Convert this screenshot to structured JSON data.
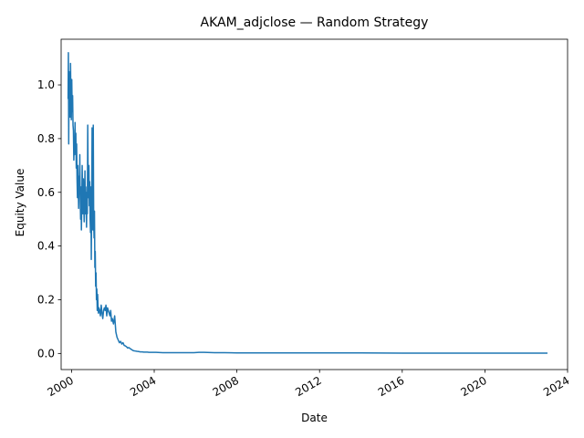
{
  "chart_data": {
    "type": "line",
    "title": "AKAM_adjclose — Random Strategy",
    "xlabel": "Date",
    "ylabel": "Equity Value",
    "xlim": [
      "1999-07-01",
      "2024-01-01"
    ],
    "ylim": [
      -0.06,
      1.17
    ],
    "x_ticks": [
      "2000",
      "2004",
      "2008",
      "2012",
      "2016",
      "2020",
      "2024"
    ],
    "y_ticks": [
      "0.0",
      "0.2",
      "0.4",
      "0.6",
      "0.8",
      "1.0"
    ],
    "grid": false,
    "legend": "none",
    "color": "#1f77b4",
    "series": [
      {
        "x": [
          "1999-11-01",
          "1999-11-06",
          "1999-11-12",
          "1999-11-18",
          "1999-11-24",
          "1999-12-01",
          "1999-12-07",
          "1999-12-14",
          "1999-12-21",
          "1999-12-28",
          "2000-01-05",
          "2000-01-12",
          "2000-01-20",
          "2000-01-27",
          "2000-02-03",
          "2000-02-10",
          "2000-02-18",
          "2000-02-25",
          "2000-03-03",
          "2000-03-10",
          "2000-03-17",
          "2000-03-24",
          "2000-03-31",
          "2000-04-07",
          "2000-04-14",
          "2000-04-21",
          "2000-04-28",
          "2000-05-05",
          "2000-05-12",
          "2000-05-19",
          "2000-05-26",
          "2000-06-02",
          "2000-06-09",
          "2000-06-16",
          "2000-06-23",
          "2000-06-30",
          "2000-07-07",
          "2000-07-14",
          "2000-07-21",
          "2000-07-28",
          "2000-08-04",
          "2000-08-11",
          "2000-08-18",
          "2000-08-25",
          "2000-09-01",
          "2000-09-08",
          "2000-09-15",
          "2000-09-22",
          "2000-09-29",
          "2000-10-06",
          "2000-10-13",
          "2000-10-20",
          "2000-10-27",
          "2000-11-03",
          "2000-11-10",
          "2000-11-17",
          "2000-11-24",
          "2000-12-01",
          "2000-12-08",
          "2000-12-15",
          "2000-12-22",
          "2000-12-29",
          "2001-01-05",
          "2001-01-12",
          "2001-01-19",
          "2001-01-26",
          "2001-02-02",
          "2001-02-09",
          "2001-02-16",
          "2001-02-23",
          "2001-03-02",
          "2001-03-09",
          "2001-03-16",
          "2001-03-23",
          "2001-03-30",
          "2001-04-06",
          "2001-04-13",
          "2001-04-20",
          "2001-04-27",
          "2001-05-11",
          "2001-05-25",
          "2001-06-08",
          "2001-06-22",
          "2001-07-06",
          "2001-07-20",
          "2001-08-03",
          "2001-08-17",
          "2001-08-31",
          "2001-09-14",
          "2001-09-28",
          "2001-10-12",
          "2001-10-26",
          "2001-11-09",
          "2001-11-23",
          "2001-12-07",
          "2001-12-21",
          "2002-01-11",
          "2002-02-01",
          "2002-02-22",
          "2002-03-15",
          "2002-04-05",
          "2002-04-26",
          "2002-05-17",
          "2002-06-07",
          "2002-06-28",
          "2002-07-19",
          "2002-08-09",
          "2002-08-30",
          "2002-09-20",
          "2002-10-11",
          "2002-11-01",
          "2002-11-22",
          "2002-12-13",
          "2003-01-03",
          "2003-02-01",
          "2003-03-01",
          "2003-04-01",
          "2003-05-01",
          "2003-06-01",
          "2003-07-01",
          "2003-08-01",
          "2003-09-01",
          "2003-10-01",
          "2003-12-01",
          "2004-02-01",
          "2004-06-01",
          "2004-12-01",
          "2005-06-01",
          "2005-12-01",
          "2006-03-01",
          "2006-06-01",
          "2006-12-01",
          "2007-06-01",
          "2008-01-01",
          "2009-01-01",
          "2010-01-01",
          "2012-01-01",
          "2014-01-01",
          "2016-01-01",
          "2018-01-01",
          "2020-01-01",
          "2022-01-01",
          "2022-12-30"
        ],
        "y": [
          0.95,
          1.12,
          0.78,
          1.05,
          0.92,
          0.98,
          0.88,
          1.08,
          0.95,
          0.87,
          1.02,
          0.9,
          0.96,
          0.85,
          0.83,
          0.72,
          0.8,
          0.74,
          0.86,
          0.75,
          0.82,
          0.69,
          0.78,
          0.65,
          0.58,
          0.7,
          0.62,
          0.54,
          0.66,
          0.6,
          0.74,
          0.58,
          0.5,
          0.62,
          0.46,
          0.55,
          0.7,
          0.6,
          0.52,
          0.65,
          0.56,
          0.49,
          0.58,
          0.68,
          0.52,
          0.62,
          0.54,
          0.47,
          0.6,
          0.52,
          0.85,
          0.65,
          0.58,
          0.7,
          0.55,
          0.64,
          0.5,
          0.45,
          0.62,
          0.35,
          0.55,
          0.84,
          0.6,
          0.46,
          0.85,
          0.5,
          0.43,
          0.53,
          0.32,
          0.38,
          0.25,
          0.3,
          0.2,
          0.24,
          0.16,
          0.22,
          0.18,
          0.15,
          0.17,
          0.16,
          0.14,
          0.18,
          0.15,
          0.13,
          0.16,
          0.17,
          0.16,
          0.18,
          0.14,
          0.17,
          0.16,
          0.15,
          0.14,
          0.16,
          0.12,
          0.13,
          0.11,
          0.14,
          0.08,
          0.06,
          0.05,
          0.04,
          0.045,
          0.035,
          0.04,
          0.03,
          0.028,
          0.025,
          0.02,
          0.022,
          0.018,
          0.015,
          0.012,
          0.01,
          0.009,
          0.008,
          0.007,
          0.006,
          0.006,
          0.005,
          0.005,
          0.005,
          0.004,
          0.004,
          0.004,
          0.003,
          0.003,
          0.003,
          0.003,
          0.004,
          0.004,
          0.003,
          0.003,
          0.002,
          0.002,
          0.002,
          0.002,
          0.002,
          0.001,
          0.001,
          0.001,
          0.001,
          0.001
        ]
      }
    ]
  }
}
